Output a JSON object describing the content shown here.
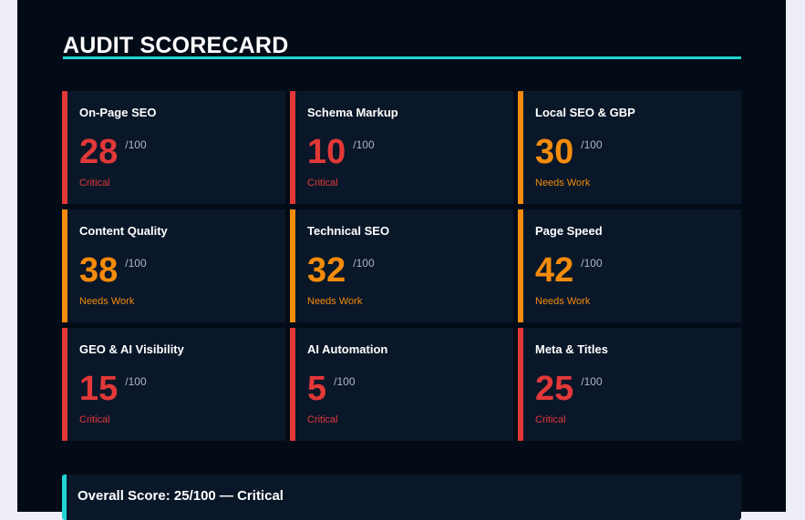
{
  "header": {
    "title": "AUDIT SCORECARD"
  },
  "colors": {
    "page_background": "#030b17",
    "card_background": "#0a1729",
    "accent": "#1fd6d4",
    "critical": "#e23838",
    "needs_work": "#f48b0b",
    "muted_text": "#aeb6c4"
  },
  "cards": [
    {
      "title": "On-Page SEO",
      "score": "28",
      "max": "/100",
      "status": "Critical",
      "level": "critical"
    },
    {
      "title": "Schema Markup",
      "score": "10",
      "max": "/100",
      "status": "Critical",
      "level": "critical"
    },
    {
      "title": "Local SEO & GBP",
      "score": "30",
      "max": "/100",
      "status": "Needs Work",
      "level": "needs-work"
    },
    {
      "title": "Content Quality",
      "score": "38",
      "max": "/100",
      "status": "Needs Work",
      "level": "needs-work"
    },
    {
      "title": "Technical SEO",
      "score": "32",
      "max": "/100",
      "status": "Needs Work",
      "level": "needs-work"
    },
    {
      "title": "Page Speed",
      "score": "42",
      "max": "/100",
      "status": "Needs Work",
      "level": "needs-work"
    },
    {
      "title": "GEO & AI Visibility",
      "score": "15",
      "max": "/100",
      "status": "Critical",
      "level": "critical"
    },
    {
      "title": "AI Automation",
      "score": "5",
      "max": "/100",
      "status": "Critical",
      "level": "critical"
    },
    {
      "title": "Meta & Titles",
      "score": "25",
      "max": "/100",
      "status": "Critical",
      "level": "critical"
    }
  ],
  "overall": {
    "text": "Overall Score: 25/100 — Critical"
  }
}
